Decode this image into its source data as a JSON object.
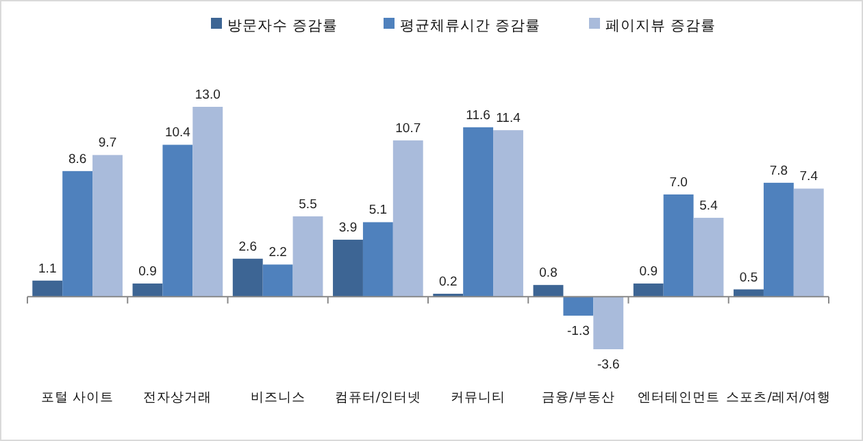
{
  "chart_data": {
    "type": "bar",
    "categories": [
      "포털 사이트",
      "전자상거래",
      "비즈니스",
      "컴퓨터/인터넷",
      "커뮤니티",
      "금융/부동산",
      "엔터테인먼트",
      "스포츠/레저/여행"
    ],
    "series": [
      {
        "name": "방문자수 증감률",
        "color": "#3d6594",
        "values": [
          1.1,
          0.9,
          2.6,
          3.9,
          0.2,
          0.8,
          0.9,
          0.5
        ],
        "value_labels": [
          "1.1",
          "0.9",
          "2.6",
          "3.9",
          "0.2",
          "0.8",
          "0.9",
          "0.5"
        ]
      },
      {
        "name": "평균체류시간 증감률",
        "color": "#4f81bd",
        "values": [
          8.6,
          10.4,
          2.2,
          5.1,
          11.6,
          -1.3,
          7.0,
          7.8
        ],
        "value_labels": [
          "8.6",
          "10.4",
          "2.2",
          "5.1",
          "11.6",
          "-1.3",
          "7.0",
          "7.8"
        ]
      },
      {
        "name": "페이지뷰 증감률",
        "color": "#a9bbdb",
        "values": [
          9.7,
          13.0,
          5.5,
          10.7,
          11.4,
          -3.6,
          5.4,
          7.4
        ],
        "value_labels": [
          "9.7",
          "13.0",
          "5.5",
          "10.7",
          "11.4",
          "-3.6",
          "5.4",
          "7.4"
        ]
      }
    ],
    "legend": "top"
  }
}
